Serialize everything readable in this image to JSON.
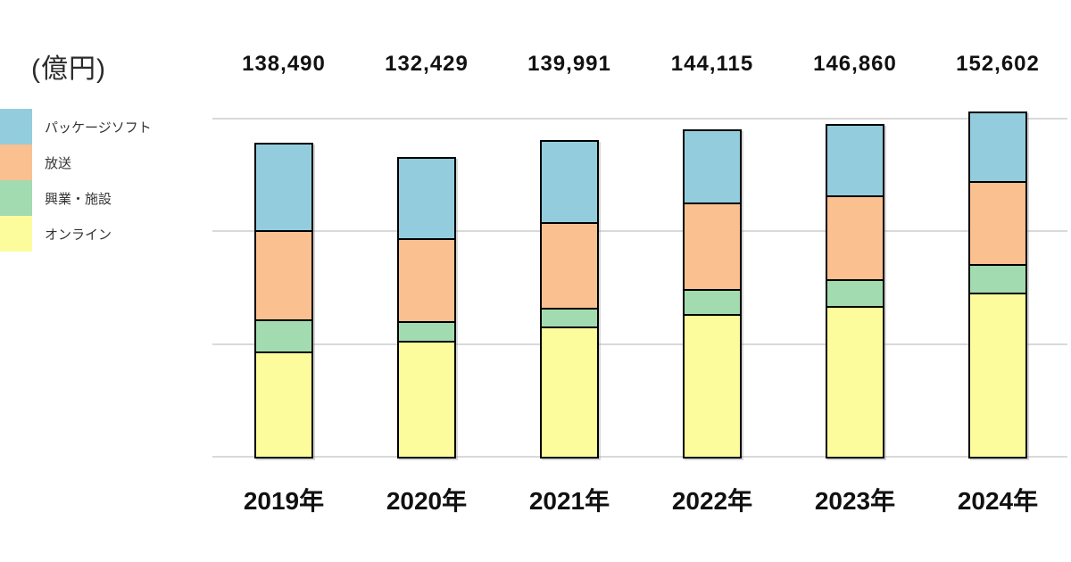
{
  "unit_label": "(億円)",
  "colors": {
    "package": "#93CDDD",
    "broadcast": "#FAC090",
    "venue": "#A2DBAF",
    "online": "#FCFC9C",
    "grid": "#D9D9D9",
    "bar_border": "#000000",
    "text": "#333333"
  },
  "legend": {
    "position": "left",
    "items": [
      {
        "label": "パッケージソフト",
        "color_key": "package"
      },
      {
        "label": "放送",
        "color_key": "broadcast"
      },
      {
        "label": "興業・施設",
        "color_key": "venue"
      },
      {
        "label": "オンライン",
        "color_key": "online"
      }
    ]
  },
  "chart_data": {
    "type": "bar",
    "stacked": true,
    "title": "",
    "ylabel": "(億円)",
    "categories": [
      "2019年",
      "2020年",
      "2021年",
      "2022年",
      "2023年",
      "2024年"
    ],
    "totals_display": [
      "138,490",
      "132,429",
      "139,991",
      "144,115",
      "146,860",
      "152,602"
    ],
    "totals": [
      138490,
      132429,
      139991,
      144115,
      146860,
      152602
    ],
    "series": [
      {
        "name": "オンライン",
        "color_key": "online",
        "values": [
          46790,
          51629,
          57791,
          63215,
          66760,
          72902
        ]
      },
      {
        "name": "興業・施設",
        "color_key": "venue",
        "values": [
          14300,
          8800,
          8500,
          10900,
          11900,
          12800
        ]
      },
      {
        "name": "放送",
        "color_key": "broadcast",
        "values": [
          39400,
          36700,
          38100,
          38500,
          37300,
          36900
        ]
      },
      {
        "name": "パッケージソフト",
        "color_key": "package",
        "values": [
          38000,
          35300,
          35600,
          31500,
          30900,
          30000
        ]
      }
    ],
    "ylim": [
      0,
      160000
    ],
    "gridline_interval": 50000,
    "grid": true,
    "legend_position": "left"
  }
}
